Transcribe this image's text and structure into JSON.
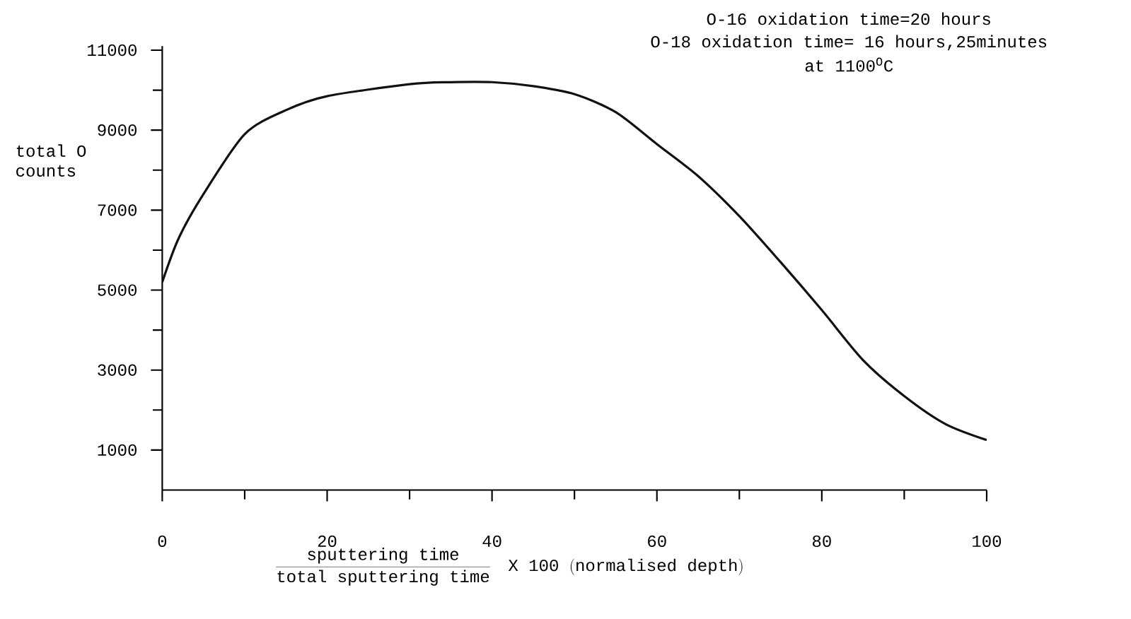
{
  "chart_data": {
    "type": "line",
    "annotations": [
      "O-16 oxidation time=20 hours",
      "O-18 oxidation time= 16 hours,25minutes",
      "at 1100$^{O}$C"
    ],
    "ylabel": "total O counts",
    "xlabel": "\\frac{\\mathrm{sputtering\\ time}}{\\mathrm{total\\ sputtering\\ time}}\\quad \\mathrm{X\\ 100\\ (normalised\\ depth)}",
    "x": [
      0,
      2,
      5,
      10,
      15,
      20,
      30,
      35,
      40,
      45,
      50,
      55,
      60,
      65,
      70,
      75,
      80,
      85,
      90,
      95,
      100
    ],
    "series": [
      {
        "color": "#111111",
        "values": [
          5200,
          6300,
          7400,
          8900,
          9500,
          9850,
          10150,
          10200,
          10200,
          10100,
          9900,
          9450,
          8650,
          7850,
          6850,
          5700,
          4500,
          3250,
          2350,
          1650,
          1250
        ]
      }
    ],
    "xlim": [
      0,
      100
    ],
    "xticks": [
      0,
      {
        "value": 10,
        "label": null
      },
      20,
      {
        "value": 30,
        "label": null
      },
      40,
      {
        "value": 50,
        "label": null
      },
      60,
      {
        "value": 70,
        "label": null
      },
      80,
      {
        "value": 90,
        "label": null
      },
      100
    ],
    "ylim": [
      0,
      11100
    ],
    "yticks": [
      1000,
      {
        "value": 2000,
        "label": null
      },
      3000,
      {
        "value": 4000,
        "label": null
      },
      5000,
      {
        "value": 6000,
        "label": null
      },
      7000,
      {
        "value": 8000,
        "label": null
      },
      9000,
      {
        "value": 10000,
        "label": null
      },
      11000
    ],
    "grid": false,
    "marker": "none",
    "line_style": "solid"
  }
}
